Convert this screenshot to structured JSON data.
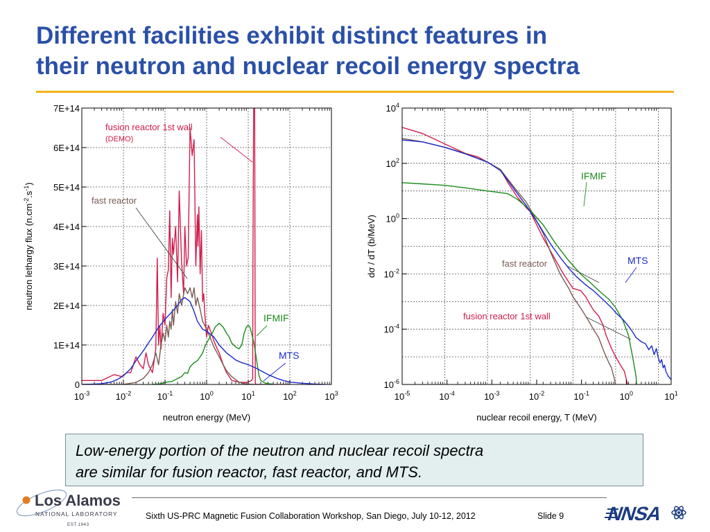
{
  "title": {
    "line1": "Different facilities exhibit distinct features in",
    "line2": "their neutron and nuclear recoil energy spectra"
  },
  "colors": {
    "title": "#2a50a8",
    "accent_rule": "#f5b21a",
    "fusion": "#d01c4c",
    "fast": "#7a5a52",
    "ifmif": "#1a8a1a",
    "mts": "#1a28c8",
    "note_bg": "#e3efef"
  },
  "chart_data": [
    {
      "type": "line",
      "xlabel": "neutron energy (MeV)",
      "ylabel": "neutron lethargy flux (n.cm^-2.s^-1)",
      "xscale": "log",
      "xlim": [
        0.001,
        1000
      ],
      "ylim": [
        0,
        700000000000000.0
      ],
      "x_ticks": [
        {
          "base": "10",
          "exp": "-3"
        },
        {
          "base": "10",
          "exp": "-2"
        },
        {
          "base": "10",
          "exp": "-1"
        },
        {
          "base": "10",
          "exp": "0"
        },
        {
          "base": "10",
          "exp": "1"
        },
        {
          "base": "10",
          "exp": "2"
        },
        {
          "base": "10",
          "exp": "3"
        }
      ],
      "y_ticks": [
        "0",
        "1E+14",
        "2E+14",
        "3E+14",
        "4E+14",
        "5E+14",
        "6E+14",
        "7E+14"
      ],
      "grid": true,
      "annotations": [
        {
          "text": "fusion reactor 1st wall",
          "color": "#d01c4c"
        },
        {
          "text": "(DEMO)",
          "color": "#d01c4c"
        },
        {
          "text": "fast reactor",
          "color": "#7a5a52"
        },
        {
          "text": "IFMIF",
          "color": "#1a8a1a"
        },
        {
          "text": "MTS",
          "color": "#1a28c8"
        }
      ],
      "series": [
        {
          "key": "fusion",
          "color": "#d01c4c",
          "x": [
            0.001,
            0.003,
            0.006,
            0.009,
            0.012,
            0.015,
            0.02,
            0.025,
            0.03,
            0.035,
            0.04,
            0.05,
            0.06,
            0.065,
            0.07,
            0.075,
            0.08,
            0.09,
            0.1,
            0.11,
            0.12,
            0.13,
            0.14,
            0.15,
            0.16,
            0.18,
            0.2,
            0.22,
            0.25,
            0.28,
            0.3,
            0.33,
            0.36,
            0.4,
            0.45,
            0.5,
            0.55,
            0.6,
            0.62,
            0.65,
            0.7,
            0.75,
            0.8,
            0.85,
            0.9,
            1,
            1.1,
            1.3,
            1.5,
            1.8,
            2,
            2.5,
            3,
            3.5,
            4,
            5,
            6,
            7,
            8,
            9,
            10,
            11,
            12,
            12.8,
            13,
            13.5,
            14,
            14.1,
            14.3,
            14.6,
            14.8,
            15,
            16,
            20,
            30,
            50,
            100
          ],
          "y": [
            10000000000000.0,
            10000000000000.0,
            25000000000000.0,
            20000000000000.0,
            30000000000000.0,
            30000000000000.0,
            70000000000000.0,
            50000000000000.0,
            40000000000000.0,
            80000000000000.0,
            50000000000000.0,
            30000000000000.0,
            90000000000000.0,
            320000000000000.0,
            100000000000000.0,
            150000000000000.0,
            90000000000000.0,
            180000000000000.0,
            150000000000000.0,
            270000000000000.0,
            290000000000000.0,
            440000000000000.0,
            220000000000000.0,
            370000000000000.0,
            330000000000000.0,
            400000000000000.0,
            260000000000000.0,
            490000000000000.0,
            310000000000000.0,
            230000000000000.0,
            400000000000000.0,
            300000000000000.0,
            320000000000000.0,
            650000000000000.0,
            580000000000000.0,
            620000000000000.0,
            300000000000000.0,
            430000000000000.0,
            350000000000000.0,
            450000000000000.0,
            280000000000000.0,
            390000000000000.0,
            210000000000000.0,
            230000000000000.0,
            180000000000000.0,
            120000000000000.0,
            150000000000000.0,
            130000000000000.0,
            110000000000000.0,
            90000000000000.0,
            80000000000000.0,
            50000000000000.0,
            30000000000000.0,
            20000000000000.0,
            10000000000000.0,
            8000000000000.0,
            6000000000000.0,
            5000000000000.0,
            5000000000000.0,
            5000000000000.0,
            6000000000000.0,
            8000000000000.0,
            10000000000000.0,
            15000000000000.0,
            300000000000000.0,
            700000000000000.0,
            700000000000000.0,
            700000000000000.0,
            700000000000000.0,
            200000000000000.0,
            5000000000000.0,
            1000000000000.0,
            0.0,
            0.0,
            0.0,
            0.0,
            0.0
          ]
        },
        {
          "key": "fast",
          "color": "#7a5a52",
          "x": [
            0.001,
            0.01,
            0.02,
            0.03,
            0.04,
            0.05,
            0.06,
            0.07,
            0.08,
            0.09,
            0.1,
            0.11,
            0.12,
            0.13,
            0.14,
            0.15,
            0.16,
            0.18,
            0.2,
            0.22,
            0.25,
            0.3,
            0.35,
            0.4,
            0.45,
            0.5,
            0.55,
            0.6,
            0.7,
            0.8,
            1,
            1.2,
            1.5,
            2,
            2.5,
            3,
            4,
            5,
            6,
            8,
            10,
            15,
            20
          ],
          "y": [
            0.0,
            0.0,
            5000000000000.0,
            15000000000000.0,
            30000000000000.0,
            50000000000000.0,
            80000000000000.0,
            50000000000000.0,
            100000000000000.0,
            130000000000000.0,
            110000000000000.0,
            150000000000000.0,
            120000000000000.0,
            160000000000000.0,
            140000000000000.0,
            190000000000000.0,
            150000000000000.0,
            210000000000000.0,
            180000000000000.0,
            230000000000000.0,
            200000000000000.0,
            245000000000000.0,
            230000000000000.0,
            245000000000000.0,
            220000000000000.0,
            245000000000000.0,
            200000000000000.0,
            220000000000000.0,
            190000000000000.0,
            160000000000000.0,
            140000000000000.0,
            120000000000000.0,
            95000000000000.0,
            70000000000000.0,
            50000000000000.0,
            35000000000000.0,
            20000000000000.0,
            12000000000000.0,
            6000000000000.0,
            2000000000000.0,
            1000000000000.0,
            0.0,
            0.0
          ]
        },
        {
          "key": "ifmif",
          "color": "#1a8a1a",
          "x": [
            0.05,
            0.08,
            0.1,
            0.15,
            0.2,
            0.25,
            0.3,
            0.35,
            0.4,
            0.5,
            0.6,
            0.7,
            0.8,
            0.9,
            1,
            1.2,
            1.4,
            1.6,
            2,
            2.5,
            3,
            3.5,
            4,
            5,
            6,
            7,
            8,
            9,
            10,
            11,
            12,
            14,
            16,
            18,
            20,
            25,
            30,
            40
          ],
          "y": [
            0.0,
            2000000000000.0,
            5000000000000.0,
            8000000000000.0,
            15000000000000.0,
            20000000000000.0,
            30000000000000.0,
            28000000000000.0,
            45000000000000.0,
            55000000000000.0,
            60000000000000.0,
            70000000000000.0,
            80000000000000.0,
            95000000000000.0,
            105000000000000.0,
            120000000000000.0,
            132000000000000.0,
            145000000000000.0,
            155000000000000.0,
            145000000000000.0,
            130000000000000.0,
            120000000000000.0,
            105000000000000.0,
            95000000000000.0,
            90000000000000.0,
            100000000000000.0,
            130000000000000.0,
            145000000000000.0,
            150000000000000.0,
            145000000000000.0,
            130000000000000.0,
            100000000000000.0,
            60000000000000.0,
            25000000000000.0,
            10000000000000.0,
            4000000000000.0,
            2000000000000.0,
            1000000000000.0
          ]
        },
        {
          "key": "mts",
          "color": "#1a28c8",
          "x": [
            0.001,
            0.002,
            0.003,
            0.005,
            0.007,
            0.01,
            0.015,
            0.02,
            0.03,
            0.04,
            0.05,
            0.07,
            0.1,
            0.15,
            0.2,
            0.25,
            0.3,
            0.4,
            0.5,
            0.6,
            0.8,
            1,
            1.5,
            2,
            3,
            4,
            5,
            7,
            10,
            15,
            20,
            30,
            50,
            70,
            100,
            200,
            400,
            700
          ],
          "y": [
            0.0,
            1000000000000.0,
            2000000000000.0,
            6000000000000.0,
            12000000000000.0,
            22000000000000.0,
            40000000000000.0,
            60000000000000.0,
            85000000000000.0,
            105000000000000.0,
            120000000000000.0,
            145000000000000.0,
            165000000000000.0,
            185000000000000.0,
            200000000000000.0,
            215000000000000.0,
            220000000000000.0,
            210000000000000.0,
            185000000000000.0,
            160000000000000.0,
            140000000000000.0,
            135000000000000.0,
            120000000000000.0,
            100000000000000.0,
            80000000000000.0,
            70000000000000.0,
            62000000000000.0,
            55000000000000.0,
            50000000000000.0,
            42000000000000.0,
            35000000000000.0,
            25000000000000.0,
            15000000000000.0,
            10000000000000.0,
            6000000000000.0,
            3000000000000.0,
            1000000000000.0,
            0.0
          ]
        }
      ]
    },
    {
      "type": "line",
      "xlabel": "nuclear recoil energy, T (MeV)",
      "ylabel": "dσ / dT (b/MeV)",
      "xscale": "log",
      "yscale": "log",
      "xlim": [
        1e-05,
        20
      ],
      "ylim": [
        1e-06,
        10000
      ],
      "x_ticks": [
        {
          "base": "10",
          "exp": "-5"
        },
        {
          "base": "10",
          "exp": "-4"
        },
        {
          "base": "10",
          "exp": "-3"
        },
        {
          "base": "10",
          "exp": "-2"
        },
        {
          "base": "10",
          "exp": "-1"
        },
        {
          "base": "10",
          "exp": "0"
        },
        {
          "base": "10",
          "exp": "1"
        }
      ],
      "y_ticks": [
        {
          "base": "10",
          "exp": "-6"
        },
        {
          "base": "10",
          "exp": "-4"
        },
        {
          "base": "10",
          "exp": "-2"
        },
        {
          "base": "10",
          "exp": "0"
        },
        {
          "base": "10",
          "exp": "2"
        },
        {
          "base": "10",
          "exp": "4"
        }
      ],
      "grid": true,
      "annotations": [
        {
          "text": "IFMIF",
          "color": "#1a8a1a"
        },
        {
          "text": "fast reactor",
          "color": "#7a5a52"
        },
        {
          "text": "MTS",
          "color": "#1a28c8"
        },
        {
          "text": "fusion reactor 1st wall",
          "color": "#d01c4c"
        }
      ],
      "series": [
        {
          "key": "fusion",
          "color": "#d01c4c",
          "x": [
            1e-05,
            3e-05,
            0.0001,
            0.0003,
            0.0006,
            0.001,
            0.002,
            0.003,
            0.005,
            0.008,
            0.01,
            0.02,
            0.04,
            0.06,
            0.1,
            0.15,
            0.2,
            0.25,
            0.3,
            0.4,
            0.5,
            0.6,
            0.8,
            1,
            1.3,
            1.6,
            1.9,
            2.0
          ],
          "y": [
            2000,
            1200,
            500,
            230,
            170,
            110,
            60,
            20,
            6,
            2.5,
            1.8,
            0.2,
            0.03,
            0.01,
            0.003,
            0.0025,
            0.0015,
            0.0008,
            0.0005,
            0.0003,
            0.00015,
            6e-05,
            2e-05,
            1e-05,
            5e-06,
            3e-06,
            1e-06,
            5e-07
          ]
        },
        {
          "key": "fast",
          "color": "#7a5a52",
          "x": [
            1e-05,
            3e-05,
            0.0001,
            0.0003,
            0.001,
            0.002,
            0.004,
            0.008,
            0.01,
            0.02,
            0.03,
            0.05,
            0.08,
            0.1,
            0.15,
            0.2,
            0.3,
            0.4,
            0.5,
            0.6,
            0.7,
            0.8,
            0.9,
            1.0,
            1.05
          ],
          "y": [
            800,
            600,
            380,
            230,
            110,
            60,
            15,
            4,
            2.2,
            0.3,
            0.06,
            0.01,
            0.003,
            0.0015,
            0.0006,
            0.0003,
            0.0001,
            5e-05,
            2e-05,
            1e-05,
            6e-06,
            4e-06,
            2e-06,
            1e-06,
            5e-07
          ]
        },
        {
          "key": "ifmif",
          "color": "#1a8a1a",
          "x": [
            1e-05,
            3e-05,
            0.0001,
            0.0003,
            0.001,
            0.003,
            0.005,
            0.01,
            0.02,
            0.04,
            0.08,
            0.15,
            0.25,
            0.4,
            0.7,
            1,
            1.5,
            2,
            2.5,
            3.0,
            3.2
          ],
          "y": [
            20,
            18,
            16,
            13,
            10,
            8,
            5,
            2,
            0.6,
            0.12,
            0.03,
            0.01,
            0.005,
            0.0025,
            0.0012,
            0.0006,
            0.0002,
            6e-05,
            1e-05,
            2e-06,
            5e-07
          ]
        },
        {
          "key": "mts",
          "color": "#1a28c8",
          "x": [
            1e-05,
            3e-05,
            0.0001,
            0.0003,
            0.001,
            0.002,
            0.004,
            0.008,
            0.015,
            0.03,
            0.05,
            0.08,
            0.12,
            0.2,
            0.3,
            0.5,
            0.8,
            1,
            1.5,
            2,
            2.5,
            3,
            4,
            5,
            6,
            7,
            8,
            9,
            10,
            11,
            12,
            13,
            14,
            15,
            17,
            20
          ],
          "y": [
            700,
            600,
            380,
            220,
            110,
            55,
            13,
            3,
            0.7,
            0.12,
            0.04,
            0.016,
            0.008,
            0.004,
            0.0025,
            0.0012,
            0.0006,
            0.0004,
            0.00022,
            0.00013,
            8e-05,
            5e-05,
            3.5e-05,
            3e-05,
            1.8e-05,
            2.5e-05,
            1.2e-05,
            2e-05,
            9e-06,
            6e-06,
            8e-06,
            4e-06,
            5e-06,
            3e-06,
            2e-06,
            1.5e-06
          ]
        }
      ]
    }
  ],
  "note": {
    "line1": "Low-energy portion of the neutron and nuclear recoil spectra",
    "line2": "are similar for fusion reactor, fast reactor, and MTS."
  },
  "footer": {
    "text": "Sixth US-PRC Magnetic Fusion Collaboration Workshop, San Diego, July 10-12, 2012",
    "slide": "Slide 9"
  },
  "logos": {
    "lanl": {
      "name": "Los Alamos",
      "sub": "NATIONAL LABORATORY",
      "est": "EST.1943"
    },
    "nnsa": {
      "name": "NNSA"
    }
  }
}
